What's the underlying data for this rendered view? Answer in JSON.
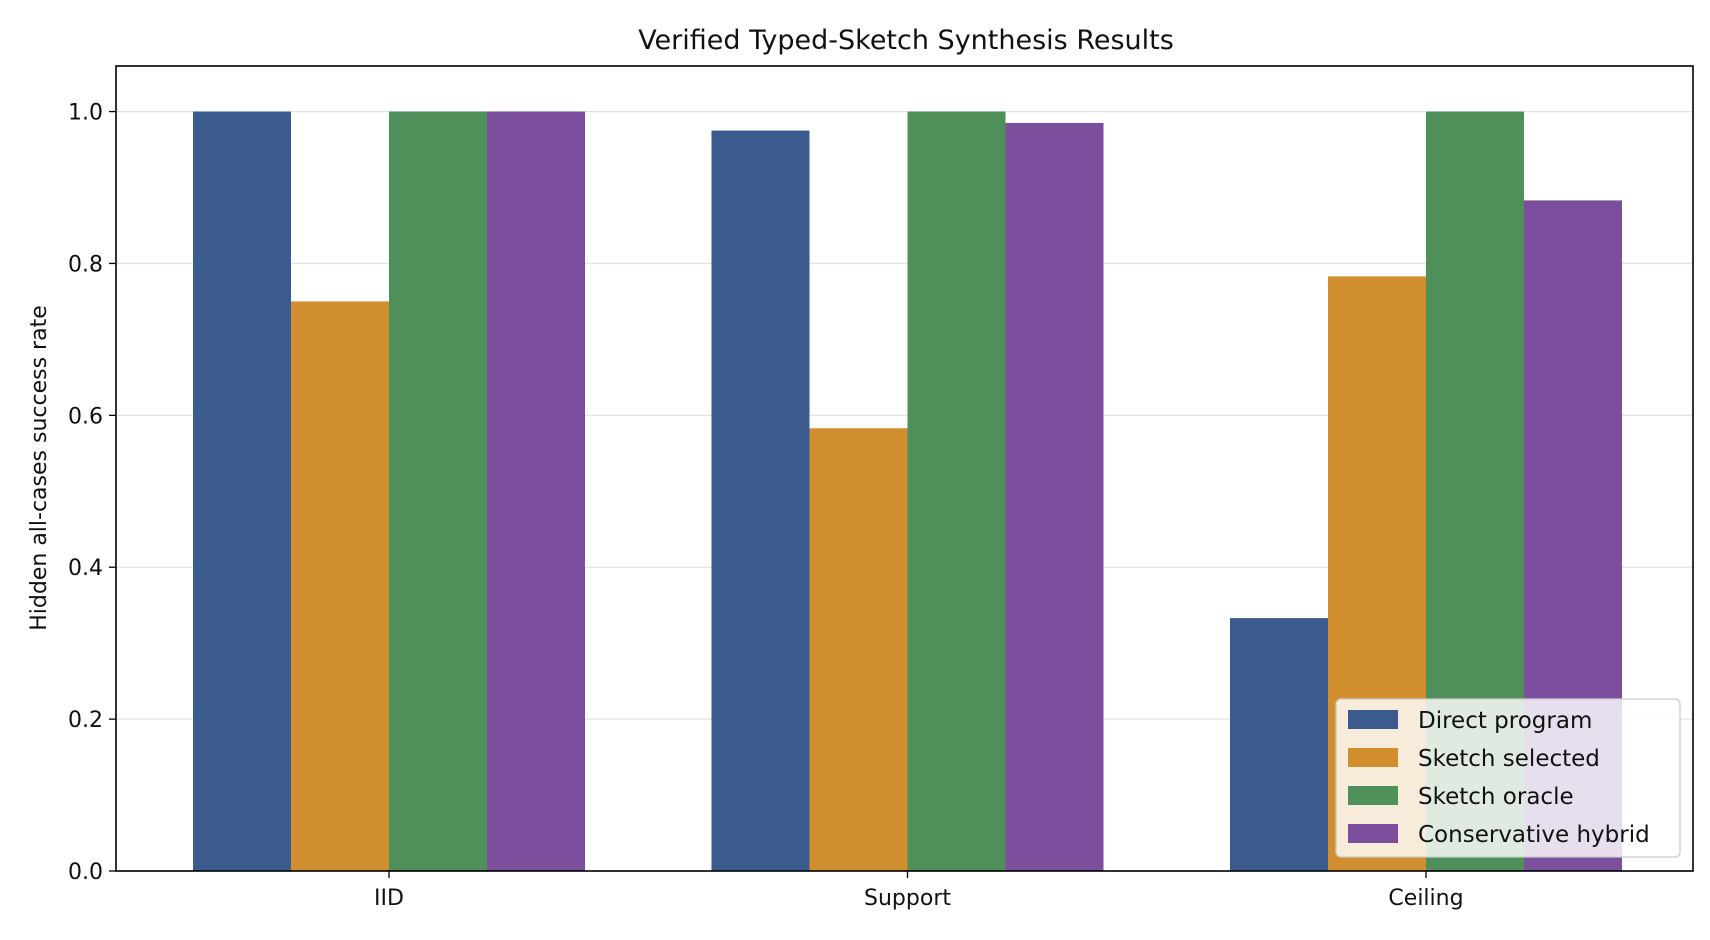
{
  "chart_data": {
    "type": "bar",
    "title": "Verified Typed-Sketch Synthesis Results",
    "xlabel": "",
    "ylabel": "Hidden all-cases success rate",
    "categories": [
      "IID",
      "Support",
      "Ceiling"
    ],
    "series": [
      {
        "name": "Direct program",
        "color": "#3b5b8f",
        "values": [
          1.0,
          0.975,
          0.333
        ]
      },
      {
        "name": "Sketch selected",
        "color": "#d08e2f",
        "values": [
          0.75,
          0.583,
          0.783
        ]
      },
      {
        "name": "Sketch oracle",
        "color": "#4f8f5a",
        "values": [
          1.0,
          1.0,
          1.0
        ]
      },
      {
        "name": "Conservative hybrid",
        "color": "#7b4f9e",
        "values": [
          1.0,
          0.985,
          0.883
        ]
      }
    ],
    "ylim": [
      0,
      1.06
    ],
    "yticks": [
      0.0,
      0.2,
      0.4,
      0.6,
      0.8,
      1.0
    ],
    "ytick_labels": [
      "0.0",
      "0.2",
      "0.4",
      "0.6",
      "0.8",
      "1.0"
    ],
    "grid": "horizontal",
    "legend_position": "lower-right"
  }
}
